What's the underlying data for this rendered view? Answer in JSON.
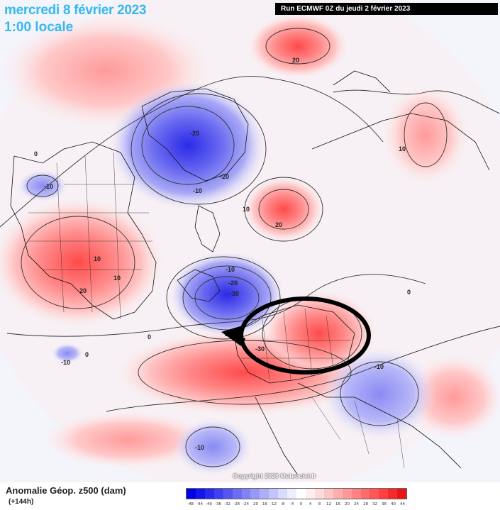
{
  "header": {
    "date": "mercredi 8 février 2023",
    "time": "1:00 locale",
    "run": "Run ECMWF 0Z du jeudi 2 février 2023"
  },
  "map": {
    "contour_labels": [
      "20",
      "10",
      "0",
      "-20",
      "-20",
      "-10",
      "-10",
      "10",
      "20",
      "0",
      "10",
      "20",
      "-10",
      "-20",
      "-30",
      "-30",
      "0",
      "-10",
      "-10",
      "0",
      "10",
      "-10"
    ],
    "copyright": "Copyright 2023 Meteociel.fr"
  },
  "footer": {
    "field": "Anomalie Géop. z500 (dam)",
    "lead_time": "(+144h)"
  },
  "colorscale": {
    "ticks": [
      "-48",
      "-44",
      "-40",
      "-36",
      "-32",
      "-28",
      "-24",
      "-20",
      "-16",
      "-12",
      "-8",
      "-4",
      "0",
      "4",
      "8",
      "12",
      "16",
      "20",
      "24",
      "28",
      "32",
      "36",
      "40",
      "44"
    ],
    "colors": [
      "#0000e6",
      "#1414ea",
      "#2a2aee",
      "#4040f0",
      "#5656f2",
      "#6c6cf4",
      "#8282f6",
      "#9898f8",
      "#aeaefa",
      "#c4c4fc",
      "#dadafd",
      "#eeeeff",
      "#ffffff",
      "#ffeeee",
      "#ffdada",
      "#ffc4c4",
      "#ffaeae",
      "#ff9898",
      "#ff8282",
      "#ff6c6c",
      "#ff5656",
      "#ff4040",
      "#f52a2a",
      "#ea1414"
    ]
  }
}
